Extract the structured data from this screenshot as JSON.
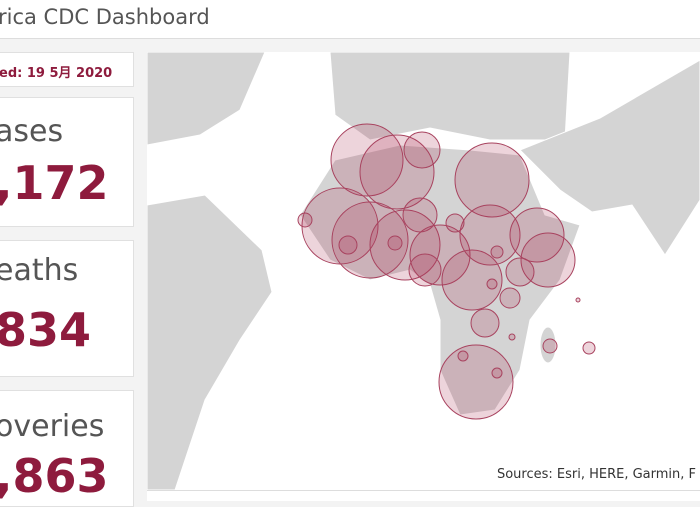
{
  "header": {
    "title": "rica CDC Dashboard"
  },
  "updated": "ed: 19 5月 2020",
  "cards": [
    {
      "label": "ases",
      "value": ",172"
    },
    {
      "label": "eaths",
      "value": "834"
    },
    {
      "label": "overies",
      "value": ",863"
    }
  ],
  "map": {
    "attribution": "Sources: Esri, HERE, Garmin, F"
  }
}
